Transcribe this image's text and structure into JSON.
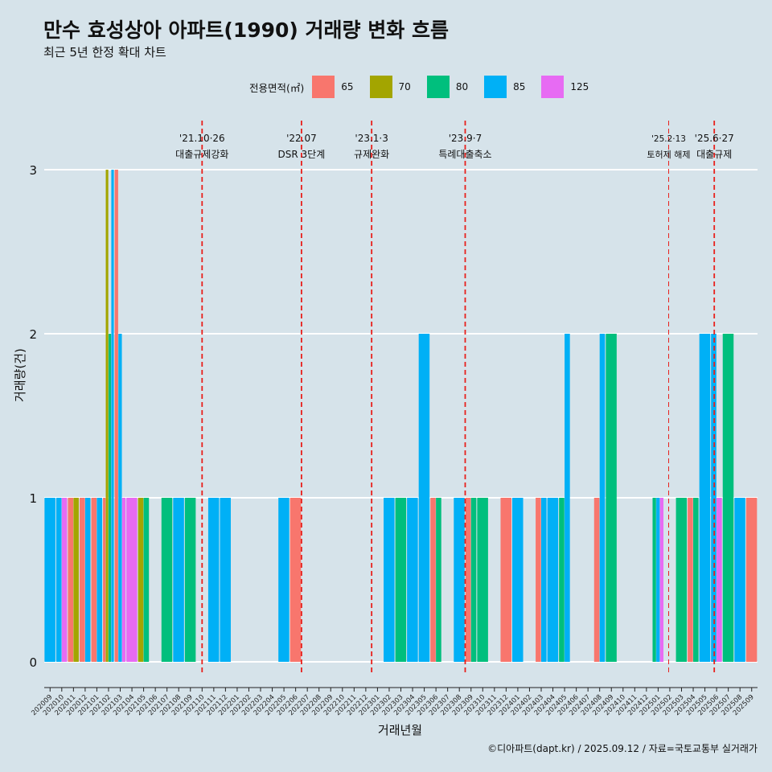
{
  "header": {
    "title": "만수 효성상아 아파트(1990) 거래량 변화 흐름",
    "subtitle": "최근 5년 한정 확대 차트"
  },
  "legend": {
    "title": "전용면적(㎡)",
    "items": [
      {
        "label": "65",
        "color": "#F8766D"
      },
      {
        "label": "70",
        "color": "#A3A500"
      },
      {
        "label": "80",
        "color": "#00BF7D"
      },
      {
        "label": "85",
        "color": "#00B0F6"
      },
      {
        "label": "125",
        "color": "#E76BF3"
      }
    ]
  },
  "axes": {
    "ylabel": "거래량(건)",
    "xlabel": "거래년월"
  },
  "caption": "©디아파트(dapt.kr) / 2025.09.12 / 자료=국토교통부 실거래가",
  "chart_data": {
    "type": "bar",
    "ylim": [
      0,
      3
    ],
    "yticks": [
      0,
      1,
      2,
      3
    ],
    "xlabels": [
      "202009",
      "202010",
      "202011",
      "202012",
      "202101",
      "202102",
      "202103",
      "202104",
      "202105",
      "202106",
      "202107",
      "202108",
      "202109",
      "202110",
      "202111",
      "202112",
      "202201",
      "202202",
      "202203",
      "202204",
      "202205",
      "202206",
      "202207",
      "202208",
      "202209",
      "202210",
      "202211",
      "202212",
      "202301",
      "202302",
      "202303",
      "202304",
      "202305",
      "202306",
      "202307",
      "202308",
      "202309",
      "202310",
      "202311",
      "202312",
      "202401",
      "202402",
      "202403",
      "202404",
      "202405",
      "202406",
      "202407",
      "202408",
      "202409",
      "202410",
      "202411",
      "202412",
      "202501",
      "202502",
      "202503",
      "202504",
      "202505",
      "202506",
      "202507",
      "202508",
      "202509"
    ],
    "bars": [
      {
        "month": "202009",
        "area": "85",
        "value": 1
      },
      {
        "month": "202010",
        "area": "85",
        "value": 1
      },
      {
        "month": "202010",
        "area": "125",
        "value": 1
      },
      {
        "month": "202011",
        "area": "65",
        "value": 1
      },
      {
        "month": "202011",
        "area": "70",
        "value": 1
      },
      {
        "month": "202012",
        "area": "65",
        "value": 1
      },
      {
        "month": "202012",
        "area": "85",
        "value": 1
      },
      {
        "month": "202101",
        "area": "65",
        "value": 1
      },
      {
        "month": "202101",
        "area": "85",
        "value": 1
      },
      {
        "month": "202102",
        "area": "65",
        "value": 1
      },
      {
        "month": "202102",
        "area": "70",
        "value": 3
      },
      {
        "month": "202102",
        "area": "80",
        "value": 2
      },
      {
        "month": "202102",
        "area": "85",
        "value": 3
      },
      {
        "month": "202103",
        "area": "65",
        "value": 3
      },
      {
        "month": "202103",
        "area": "85",
        "value": 2
      },
      {
        "month": "202103",
        "area": "125",
        "value": 1
      },
      {
        "month": "202104",
        "area": "125",
        "value": 1
      },
      {
        "month": "202105",
        "area": "70",
        "value": 1
      },
      {
        "month": "202105",
        "area": "80",
        "value": 1
      },
      {
        "month": "202107",
        "area": "80",
        "value": 1
      },
      {
        "month": "202108",
        "area": "85",
        "value": 1
      },
      {
        "month": "202109",
        "area": "80",
        "value": 1
      },
      {
        "month": "202111",
        "area": "85",
        "value": 1
      },
      {
        "month": "202112",
        "area": "85",
        "value": 1
      },
      {
        "month": "202205",
        "area": "85",
        "value": 1
      },
      {
        "month": "202206",
        "area": "65",
        "value": 1
      },
      {
        "month": "202302",
        "area": "85",
        "value": 1
      },
      {
        "month": "202303",
        "area": "80",
        "value": 1
      },
      {
        "month": "202304",
        "area": "85",
        "value": 1
      },
      {
        "month": "202305",
        "area": "85",
        "value": 2
      },
      {
        "month": "202306",
        "area": "65",
        "value": 1
      },
      {
        "month": "202306",
        "area": "80",
        "value": 1
      },
      {
        "month": "202308",
        "area": "85",
        "value": 1
      },
      {
        "month": "202309",
        "area": "65",
        "value": 1
      },
      {
        "month": "202309",
        "area": "80",
        "value": 1
      },
      {
        "month": "202310",
        "area": "80",
        "value": 1
      },
      {
        "month": "202312",
        "area": "65",
        "value": 1
      },
      {
        "month": "202401",
        "area": "85",
        "value": 1
      },
      {
        "month": "202403",
        "area": "65",
        "value": 1
      },
      {
        "month": "202403",
        "area": "85",
        "value": 1
      },
      {
        "month": "202404",
        "area": "85",
        "value": 1
      },
      {
        "month": "202405",
        "area": "80",
        "value": 1
      },
      {
        "month": "202405",
        "area": "85",
        "value": 2
      },
      {
        "month": "202408",
        "area": "65",
        "value": 1
      },
      {
        "month": "202408",
        "area": "85",
        "value": 2
      },
      {
        "month": "202409",
        "area": "80",
        "value": 2
      },
      {
        "month": "202501",
        "area": "80",
        "value": 1
      },
      {
        "month": "202501",
        "area": "85",
        "value": 1
      },
      {
        "month": "202501",
        "area": "125",
        "value": 1
      },
      {
        "month": "202503",
        "area": "80",
        "value": 1
      },
      {
        "month": "202504",
        "area": "65",
        "value": 1
      },
      {
        "month": "202504",
        "area": "80",
        "value": 1
      },
      {
        "month": "202505",
        "area": "85",
        "value": 2
      },
      {
        "month": "202506",
        "area": "85",
        "value": 2
      },
      {
        "month": "202506",
        "area": "125",
        "value": 1
      },
      {
        "month": "202507",
        "area": "80",
        "value": 2
      },
      {
        "month": "202508",
        "area": "85",
        "value": 1
      },
      {
        "month": "202509",
        "area": "65",
        "value": 1
      }
    ],
    "events": [
      {
        "month": "202110",
        "offset": 0.5,
        "date": "'21.10·26",
        "label": "대출규제강화",
        "style": "bold"
      },
      {
        "month": "202207",
        "offset": 0.0,
        "date": "'22.07",
        "label": "DSR 3단계",
        "style": "bold"
      },
      {
        "month": "202301",
        "offset": 0.0,
        "date": "'23.1·3",
        "label": "규제완화",
        "style": "bold"
      },
      {
        "month": "202309",
        "offset": 0.0,
        "date": "'23.9·7",
        "label": "특례대출축소",
        "style": "bold"
      },
      {
        "month": "202502",
        "offset": 0.4,
        "date": "'25.2·13",
        "label": "토허제 해제",
        "style": "thin"
      },
      {
        "month": "202506",
        "offset": 0.3,
        "date": "'25.6·27",
        "label": "대출규제",
        "style": "bold"
      }
    ]
  }
}
